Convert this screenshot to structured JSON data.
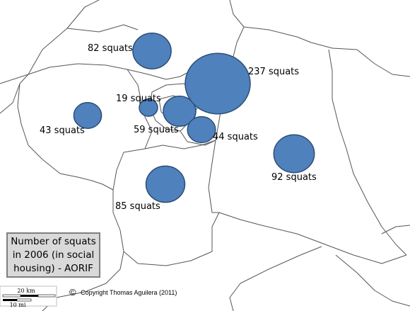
{
  "map": {
    "legend": {
      "lines": [
        "Number of squats",
        "in 2006 (in social",
        "housing) - AORIF"
      ]
    },
    "copyright": {
      "symbol": "©",
      "text": "Copyright Thomas Aguilera (2011)"
    },
    "scale_bar": {
      "km_label": "20 km",
      "mi_label": "10 mi"
    },
    "colors": {
      "bubble_fill": "#4f81bd",
      "bubble_stroke": "#2c4d75",
      "border": "#555555"
    },
    "bubbles": [
      {
        "id": "hauts-de-seine",
        "label": "59 squats",
        "count": 59
      },
      {
        "id": "seine-saint-denis",
        "label": "237 squats",
        "count": 237
      },
      {
        "id": "val-d-oise",
        "label": "82 squats",
        "count": 82
      },
      {
        "id": "paris",
        "label": "19 squats",
        "count": 19
      },
      {
        "id": "val-de-marne",
        "label": "44 squats",
        "count": 44
      },
      {
        "id": "yvelines",
        "label": "43 squats",
        "count": 43
      },
      {
        "id": "seine-et-marne",
        "label": "92 squats",
        "count": 92
      },
      {
        "id": "essonne",
        "label": "85 squats",
        "count": 85
      }
    ]
  }
}
